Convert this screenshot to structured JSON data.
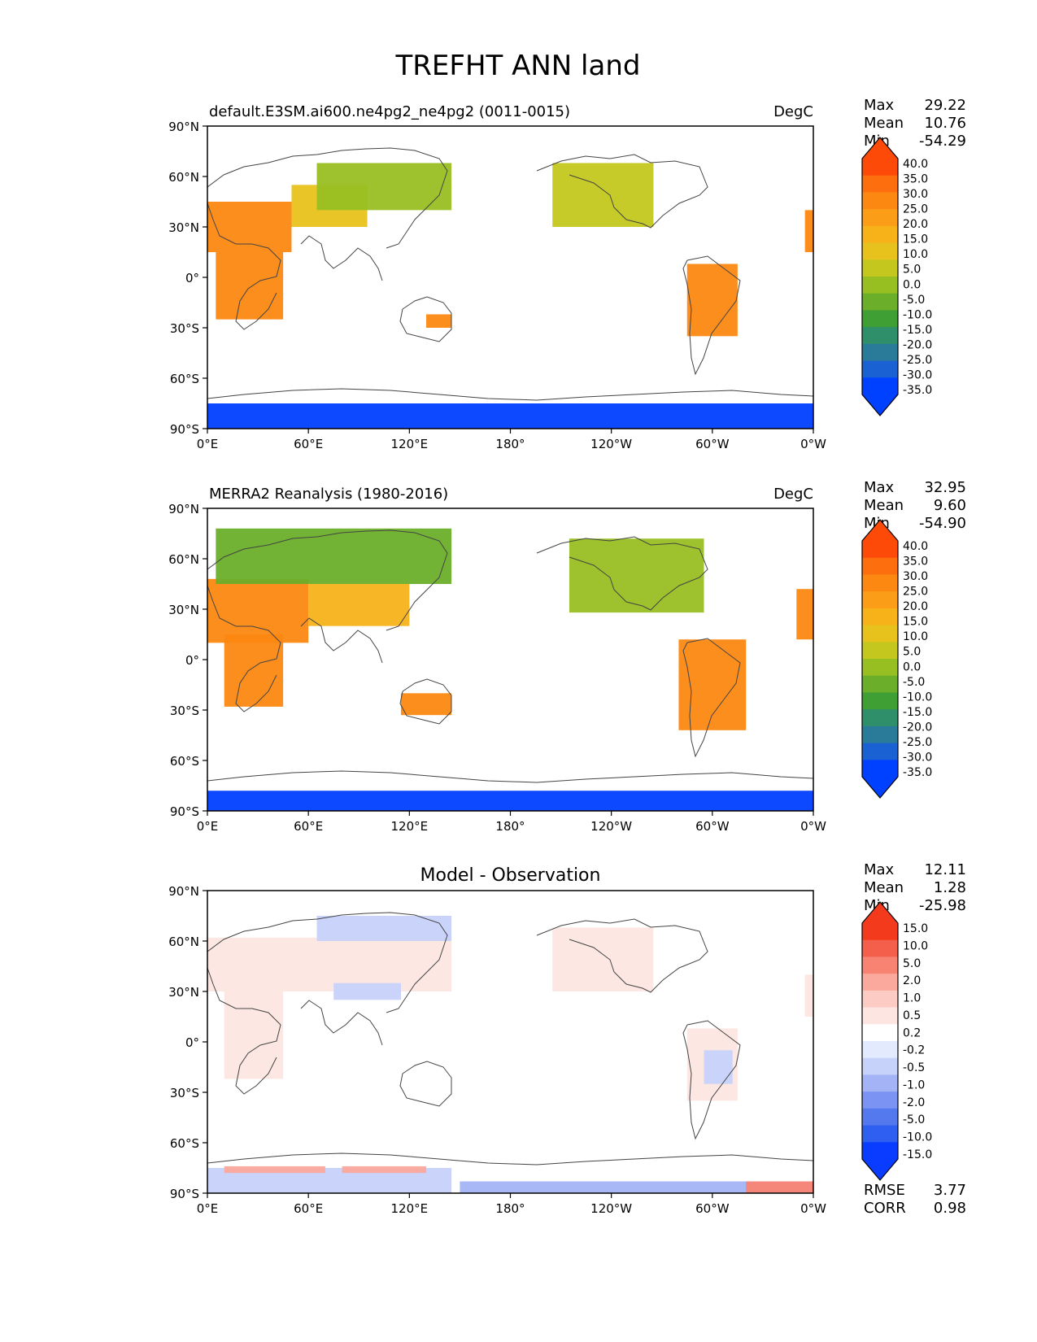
{
  "figure": {
    "title": "TREFHT ANN land"
  },
  "axes": {
    "lat_ticks": [
      "90°N",
      "60°N",
      "30°N",
      "0°",
      "30°S",
      "60°S",
      "90°S"
    ],
    "lon_ticks": [
      "0°E",
      "60°E",
      "120°E",
      "180°",
      "120°W",
      "60°W",
      "0°W"
    ]
  },
  "stat_labels": {
    "max": "Max",
    "mean": "Mean",
    "min": "Min",
    "rmse": "RMSE",
    "corr": "CORR"
  },
  "colors": {
    "field_scale": [
      "#0040ff",
      "#1a62d4",
      "#2a7a9a",
      "#2f8f6a",
      "#3f9f35",
      "#6aae2a",
      "#98bf22",
      "#c4c81e",
      "#e8c21c",
      "#f7b21a",
      "#fb9d16",
      "#fc8812",
      "#fd6e0e",
      "#fe4a08"
    ],
    "diff_scale": [
      "#0a3cff",
      "#2f5ff0",
      "#5479ee",
      "#7b93f2",
      "#a3b3f6",
      "#c7d2fb",
      "#e4eafe",
      "#ffffff",
      "#fde6e2",
      "#fcccc4",
      "#fba99c",
      "#f88373",
      "#f35f4b",
      "#f33a1d"
    ],
    "coast": "#444444"
  },
  "chart_data": [
    {
      "type": "heatmap",
      "name": "model",
      "title": "default.E3SM.ai600.ne4pg2_ne4pg2 (0011-0015)",
      "units": "DegC",
      "xlim": [
        0,
        360
      ],
      "ylim": [
        -90,
        90
      ],
      "colorbar_ticks": [
        "40.0",
        "35.0",
        "30.0",
        "25.0",
        "20.0",
        "15.0",
        "10.0",
        "5.0",
        "0.0",
        "-5.0",
        "-10.0",
        "-15.0",
        "-20.0",
        "-25.0",
        "-30.0",
        "-35.0"
      ],
      "stats": {
        "max": "29.22",
        "mean": "10.76",
        "min": "-54.29"
      },
      "regions": [
        {
          "lon": [
            5,
            45
          ],
          "lat": [
            -25,
            15
          ],
          "value": 28
        },
        {
          "lon": [
            0,
            50
          ],
          "lat": [
            15,
            45
          ],
          "value": 26
        },
        {
          "lon": [
            50,
            95
          ],
          "lat": [
            30,
            55
          ],
          "value": 12
        },
        {
          "lon": [
            65,
            145
          ],
          "lat": [
            40,
            68
          ],
          "value": -3
        },
        {
          "lon": [
            205,
            265
          ],
          "lat": [
            30,
            68
          ],
          "value": 2
        },
        {
          "lon": [
            285,
            315
          ],
          "lat": [
            -35,
            8
          ],
          "value": 27
        },
        {
          "lon": [
            130,
            145
          ],
          "lat": [
            -30,
            -22
          ],
          "value": 26
        },
        {
          "lon": [
            355,
            360
          ],
          "lat": [
            15,
            40
          ],
          "value": 25
        },
        {
          "lon": [
            0,
            360
          ],
          "lat": [
            -90,
            -75
          ],
          "value": -45
        }
      ]
    },
    {
      "type": "heatmap",
      "name": "observation",
      "title": "MERRA2 Reanalysis (1980-2016)",
      "units": "DegC",
      "xlim": [
        0,
        360
      ],
      "ylim": [
        -90,
        90
      ],
      "colorbar_ticks": [
        "40.0",
        "35.0",
        "30.0",
        "25.0",
        "20.0",
        "15.0",
        "10.0",
        "5.0",
        "0.0",
        "-5.0",
        "-10.0",
        "-15.0",
        "-20.0",
        "-25.0",
        "-30.0",
        "-35.0"
      ],
      "stats": {
        "max": "32.95",
        "mean": "9.60",
        "min": "-54.90"
      },
      "regions": [
        {
          "lon": [
            10,
            45
          ],
          "lat": [
            -28,
            15
          ],
          "value": 27
        },
        {
          "lon": [
            0,
            60
          ],
          "lat": [
            10,
            48
          ],
          "value": 25
        },
        {
          "lon": [
            60,
            120
          ],
          "lat": [
            20,
            45
          ],
          "value": 15
        },
        {
          "lon": [
            5,
            145
          ],
          "lat": [
            45,
            78
          ],
          "value": -5
        },
        {
          "lon": [
            215,
            295
          ],
          "lat": [
            28,
            72
          ],
          "value": 0
        },
        {
          "lon": [
            280,
            320
          ],
          "lat": [
            -42,
            12
          ],
          "value": 25
        },
        {
          "lon": [
            115,
            145
          ],
          "lat": [
            -33,
            -20
          ],
          "value": 25
        },
        {
          "lon": [
            350,
            360
          ],
          "lat": [
            12,
            42
          ],
          "value": 26
        },
        {
          "lon": [
            0,
            360
          ],
          "lat": [
            -90,
            -78
          ],
          "value": -45
        }
      ]
    },
    {
      "type": "heatmap",
      "name": "difference",
      "title": "Model - Observation",
      "units": "",
      "xlim": [
        0,
        360
      ],
      "ylim": [
        -90,
        90
      ],
      "colorbar_ticks": [
        "15.0",
        "10.0",
        "5.0",
        "2.0",
        "1.0",
        "0.5",
        "0.2",
        "-0.2",
        "-0.5",
        "-1.0",
        "-2.0",
        "-5.0",
        "-10.0",
        "-15.0"
      ],
      "stats": {
        "max": "12.11",
        "mean": "1.28",
        "min": "-25.98"
      },
      "metrics": {
        "rmse": "3.77",
        "corr": "0.98"
      },
      "regions": [
        {
          "lon": [
            0,
            145
          ],
          "lat": [
            30,
            62
          ],
          "value": 4
        },
        {
          "lon": [
            10,
            45
          ],
          "lat": [
            -22,
            30
          ],
          "value": 3
        },
        {
          "lon": [
            65,
            145
          ],
          "lat": [
            60,
            75
          ],
          "value": -3
        },
        {
          "lon": [
            75,
            115
          ],
          "lat": [
            25,
            35
          ],
          "value": -4
        },
        {
          "lon": [
            205,
            265
          ],
          "lat": [
            30,
            68
          ],
          "value": 4
        },
        {
          "lon": [
            285,
            315
          ],
          "lat": [
            -35,
            8
          ],
          "value": 3
        },
        {
          "lon": [
            295,
            312
          ],
          "lat": [
            -25,
            -5
          ],
          "value": -3
        },
        {
          "lon": [
            130,
            145
          ],
          "lat": [
            -30,
            -22
          ],
          "value": 2
        },
        {
          "lon": [
            355,
            360
          ],
          "lat": [
            15,
            40
          ],
          "value": 3
        },
        {
          "lon": [
            0,
            145
          ],
          "lat": [
            -90,
            -75
          ],
          "value": -4
        },
        {
          "lon": [
            10,
            70
          ],
          "lat": [
            -78,
            -74
          ],
          "value": 8
        },
        {
          "lon": [
            80,
            130
          ],
          "lat": [
            -78,
            -74
          ],
          "value": 8
        },
        {
          "lon": [
            150,
            360
          ],
          "lat": [
            -90,
            -83
          ],
          "value": -6
        },
        {
          "lon": [
            320,
            360
          ],
          "lat": [
            -90,
            -83
          ],
          "value": 10
        }
      ]
    }
  ]
}
